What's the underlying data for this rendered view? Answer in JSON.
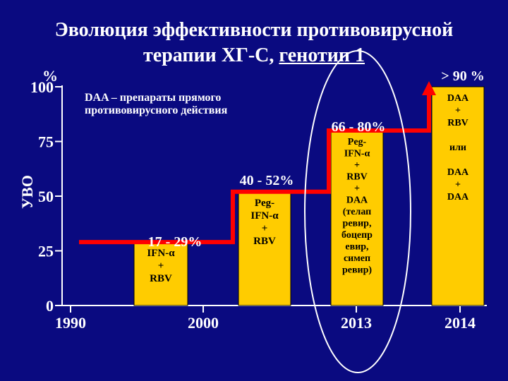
{
  "title_line1": "Эволюция эффективности противовирусной",
  "title_line2_prefix": "терапии ХГ-С, ",
  "title_line2_underlined": "генотип 1",
  "note": "DAA – препараты прямого противовирусного действия",
  "colors": {
    "background": "#0a0a80",
    "bar": "#ffcc00",
    "step_line": "#ff0000",
    "axis": "#ffffff",
    "text": "#ffffff"
  },
  "chart_data": {
    "type": "bar",
    "ylabel": "УВО",
    "yunit": "%",
    "ylim": [
      0,
      100
    ],
    "yticks": [
      "0",
      "25",
      "50",
      "75",
      "100"
    ],
    "xticks": [
      "1990",
      "2000",
      "2013",
      "2014"
    ],
    "highlighted_xtick": "2013",
    "bars": [
      {
        "range_label": "17 - 29%",
        "low": 17,
        "high": 29,
        "value": 29,
        "lines": [
          "IFN-α",
          "+",
          "RBV"
        ]
      },
      {
        "range_label": "40 - 52%",
        "low": 40,
        "high": 52,
        "value": 52,
        "lines": [
          "Peg-",
          "IFN-α",
          "+",
          "RBV"
        ]
      },
      {
        "range_label": "66 - 80%",
        "low": 66,
        "high": 80,
        "value": 80,
        "lines": [
          "Peg-",
          "IFN-α",
          "+",
          "RBV",
          "+",
          "DAA",
          "(телап",
          "ревир,",
          "боцепр",
          "евир,",
          "симеп",
          "ревир)"
        ]
      },
      {
        "range_label": "> 90 %",
        "low": 90,
        "high": 100,
        "value": 100,
        "lines": [
          "DAA",
          "+",
          "RBV",
          "",
          "или",
          "",
          "DAA",
          "+",
          "DAA"
        ]
      }
    ],
    "grid": false,
    "step_line": true
  }
}
